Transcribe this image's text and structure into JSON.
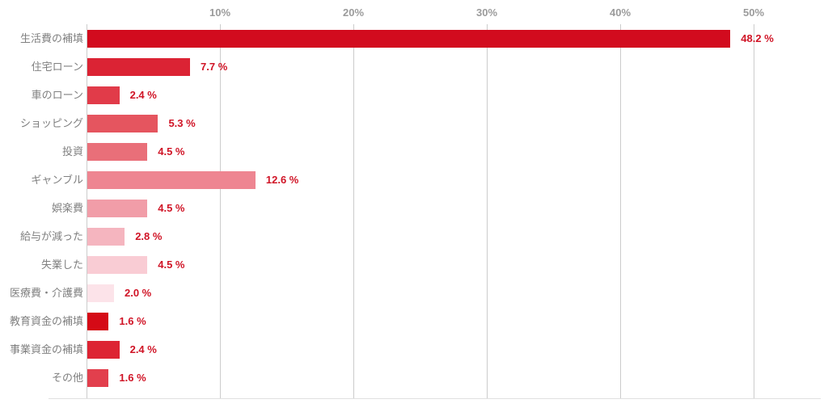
{
  "chart_data": {
    "type": "bar",
    "orientation": "horizontal",
    "title": "",
    "xlabel": "",
    "ylabel": "",
    "xlim": [
      0,
      55
    ],
    "grid": true,
    "legend": "none",
    "categories": [
      "生活費の補填",
      "住宅ローン",
      "車のローン",
      "ショッピング",
      "投資",
      "ギャンブル",
      "娯楽費",
      "給与が減った",
      "失業した",
      "医療費・介護費",
      "教育資金の補填",
      "事業資金の補填",
      "その他"
    ],
    "values": [
      48.2,
      7.7,
      2.4,
      5.3,
      4.5,
      12.6,
      4.5,
      2.8,
      4.5,
      2.0,
      1.6,
      2.4,
      1.6
    ],
    "value_labels": [
      "48.2 %",
      "7.7 %",
      "2.4 %",
      "5.3 %",
      "4.5 %",
      "12.6 %",
      "4.5 %",
      "2.8 %",
      "4.5 %",
      "2.0 %",
      "1.6 %",
      "2.4 %",
      "1.6 %"
    ],
    "bar_colors": [
      "#d20b1e",
      "#db2334",
      "#e13b49",
      "#e5555f",
      "#e96f79",
      "#ee8591",
      "#f19da8",
      "#f5b5bf",
      "#f9ccd4",
      "#fce3e9",
      "#d50a16",
      "#dd2433",
      "#e23f4d"
    ],
    "x_ticks": [
      "10%",
      "20%",
      "30%",
      "40%",
      "50%"
    ],
    "x_tick_values": [
      10,
      20,
      30,
      40,
      50
    ],
    "colors": {
      "background": "#ffffff",
      "gridline": "#cccccc",
      "axis_line": "#cccccc",
      "bottom_line": "#e0e0e0",
      "tick_label": "#9b9b9b",
      "category_label": "#808080",
      "value_label": "#d01426"
    }
  }
}
